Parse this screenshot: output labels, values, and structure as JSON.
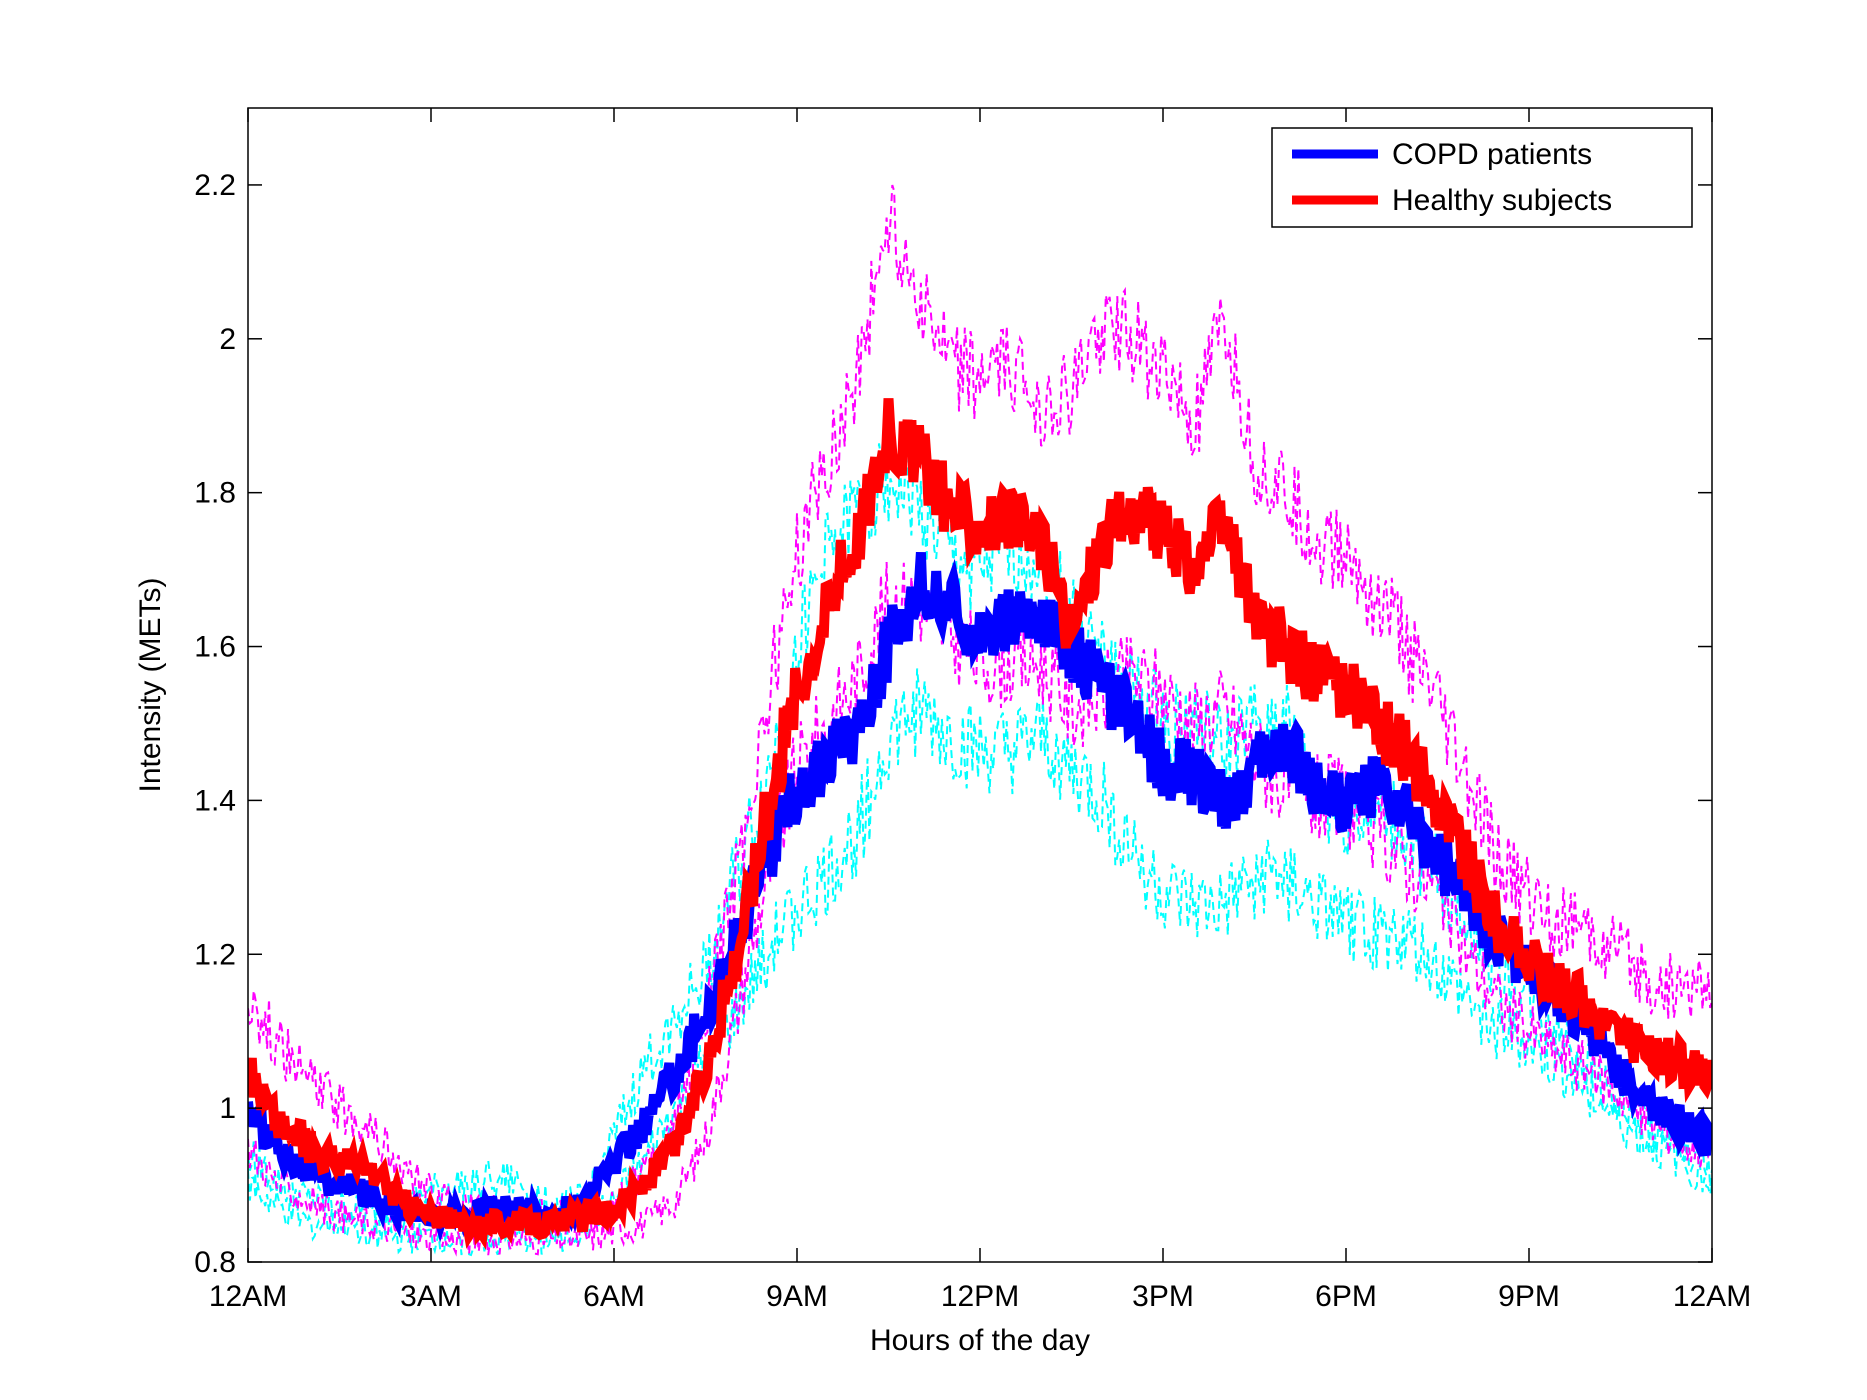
{
  "chart_data": {
    "type": "line",
    "title": "",
    "xlabel": "Hours of the day",
    "ylabel": "Intensity (METs)",
    "xlim": [
      0,
      24
    ],
    "ylim": [
      0.8,
      2.3
    ],
    "x_ticks": [
      {
        "value": 0,
        "label": "12AM"
      },
      {
        "value": 3,
        "label": "3AM"
      },
      {
        "value": 6,
        "label": "6AM"
      },
      {
        "value": 9,
        "label": "9AM"
      },
      {
        "value": 12,
        "label": "12PM"
      },
      {
        "value": 15,
        "label": "3PM"
      },
      {
        "value": 18,
        "label": "6PM"
      },
      {
        "value": 21,
        "label": "9PM"
      },
      {
        "value": 24,
        "label": "12AM"
      }
    ],
    "y_ticks": [
      {
        "value": 0.8,
        "label": "0.8"
      },
      {
        "value": 1.0,
        "label": "1"
      },
      {
        "value": 1.2,
        "label": "1.2"
      },
      {
        "value": 1.4,
        "label": "1.4"
      },
      {
        "value": 1.6,
        "label": "1.6"
      },
      {
        "value": 1.8,
        "label": "1.8"
      },
      {
        "value": 2.0,
        "label": "2"
      },
      {
        "value": 2.2,
        "label": "2.2"
      }
    ],
    "grid": false,
    "legend": {
      "placement": "top-right"
    },
    "x": [
      0,
      0.5,
      1,
      1.5,
      2,
      2.5,
      3,
      3.5,
      4,
      4.5,
      5,
      5.5,
      6,
      6.5,
      7,
      7.5,
      8,
      8.5,
      9,
      9.5,
      10,
      10.5,
      11,
      11.5,
      12,
      12.5,
      13,
      13.5,
      14,
      14.5,
      15,
      15.5,
      16,
      16.5,
      17,
      17.5,
      18,
      18.5,
      19,
      19.5,
      20,
      20.5,
      21,
      21.5,
      22,
      22.5,
      23,
      23.5,
      24
    ],
    "series": [
      {
        "name": "COPD patients",
        "color": "#0000ff",
        "style": "solid-thick",
        "legend": true,
        "values": [
          1.0,
          0.95,
          0.92,
          0.9,
          0.89,
          0.87,
          0.86,
          0.86,
          0.87,
          0.87,
          0.86,
          0.88,
          0.93,
          0.98,
          1.05,
          1.12,
          1.22,
          1.32,
          1.42,
          1.45,
          1.5,
          1.6,
          1.68,
          1.65,
          1.62,
          1.63,
          1.64,
          1.6,
          1.55,
          1.5,
          1.45,
          1.43,
          1.4,
          1.44,
          1.48,
          1.42,
          1.4,
          1.42,
          1.38,
          1.33,
          1.27,
          1.22,
          1.18,
          1.14,
          1.1,
          1.05,
          1.0,
          0.98,
          0.96
        ]
      },
      {
        "name": "Healthy subjects",
        "color": "#ff0000",
        "style": "solid-thick",
        "legend": true,
        "values": [
          1.05,
          0.98,
          0.95,
          0.93,
          0.92,
          0.88,
          0.86,
          0.85,
          0.85,
          0.85,
          0.85,
          0.86,
          0.87,
          0.9,
          0.95,
          1.05,
          1.2,
          1.38,
          1.55,
          1.65,
          1.75,
          1.88,
          1.85,
          1.78,
          1.76,
          1.76,
          1.74,
          1.62,
          1.74,
          1.78,
          1.75,
          1.7,
          1.76,
          1.64,
          1.6,
          1.56,
          1.55,
          1.5,
          1.46,
          1.4,
          1.32,
          1.24,
          1.19,
          1.16,
          1.13,
          1.1,
          1.07,
          1.06,
          1.04
        ]
      },
      {
        "name": "",
        "color": "#00ffff",
        "style": "dashed",
        "legend": false,
        "values": [
          0.94,
          0.9,
          0.88,
          0.87,
          0.86,
          0.87,
          0.89,
          0.9,
          0.91,
          0.9,
          0.87,
          0.88,
          0.96,
          1.05,
          1.12,
          1.18,
          1.3,
          1.42,
          1.6,
          1.72,
          1.78,
          1.82,
          1.78,
          1.72,
          1.7,
          1.72,
          1.72,
          1.65,
          1.58,
          1.54,
          1.5,
          1.5,
          1.46,
          1.5,
          1.5,
          1.4,
          1.38,
          1.38,
          1.36,
          1.3,
          1.24,
          1.18,
          1.14,
          1.1,
          1.06,
          1.0,
          0.97,
          0.95,
          0.92
        ]
      },
      {
        "name": "",
        "color": "#00ffff",
        "style": "dashed",
        "legend": false,
        "values": [
          0.9,
          0.87,
          0.85,
          0.85,
          0.84,
          0.83,
          0.83,
          0.83,
          0.83,
          0.83,
          0.83,
          0.84,
          0.88,
          0.93,
          1.0,
          1.06,
          1.12,
          1.2,
          1.26,
          1.3,
          1.36,
          1.48,
          1.52,
          1.48,
          1.46,
          1.46,
          1.48,
          1.44,
          1.4,
          1.34,
          1.28,
          1.26,
          1.26,
          1.3,
          1.3,
          1.26,
          1.24,
          1.23,
          1.22,
          1.18,
          1.14,
          1.1,
          1.08,
          1.05,
          1.02,
          0.98,
          0.95,
          0.93,
          0.9
        ]
      },
      {
        "name": "",
        "color": "#ff00ff",
        "style": "dashed",
        "legend": false,
        "values": [
          1.15,
          1.08,
          1.04,
          1.0,
          0.98,
          0.92,
          0.89,
          0.87,
          0.87,
          0.86,
          0.86,
          0.86,
          0.87,
          0.92,
          0.98,
          1.12,
          1.3,
          1.52,
          1.72,
          1.84,
          1.96,
          2.16,
          2.06,
          1.96,
          1.95,
          1.96,
          1.92,
          1.92,
          2.02,
          2.0,
          1.96,
          1.88,
          2.02,
          1.84,
          1.8,
          1.74,
          1.72,
          1.66,
          1.6,
          1.52,
          1.42,
          1.32,
          1.28,
          1.24,
          1.22,
          1.2,
          1.16,
          1.16,
          1.14
        ]
      },
      {
        "name": "",
        "color": "#ff00ff",
        "style": "dashed",
        "legend": false,
        "values": [
          0.95,
          0.9,
          0.88,
          0.86,
          0.85,
          0.84,
          0.83,
          0.83,
          0.83,
          0.83,
          0.83,
          0.83,
          0.84,
          0.85,
          0.88,
          0.96,
          1.12,
          1.3,
          1.44,
          1.5,
          1.56,
          1.66,
          1.66,
          1.62,
          1.58,
          1.58,
          1.58,
          1.52,
          1.54,
          1.56,
          1.54,
          1.5,
          1.52,
          1.46,
          1.42,
          1.4,
          1.4,
          1.36,
          1.32,
          1.28,
          1.2,
          1.14,
          1.1,
          1.07,
          1.05,
          1.02,
          0.98,
          0.96,
          0.94
        ]
      }
    ]
  }
}
